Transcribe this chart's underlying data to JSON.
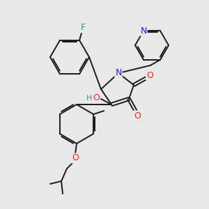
{
  "background_color": "#e8e8e8",
  "bond_color": "#1a1a1a",
  "atom_colors": {
    "N": "#1a1aff",
    "O": "#ff2020",
    "F": "#20a0a0",
    "H": "#20a0a0",
    "C": "#1a1a1a"
  },
  "figsize": [
    3.0,
    3.0
  ],
  "dpi": 100
}
